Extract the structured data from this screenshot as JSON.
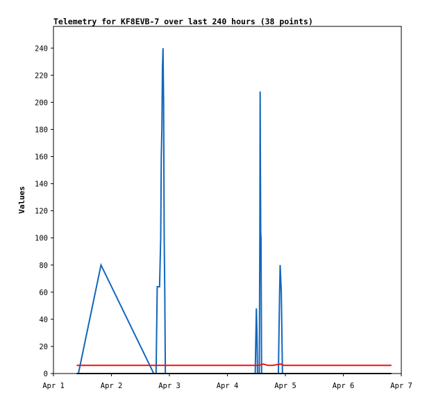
{
  "chart_data": {
    "type": "line",
    "title": "Telemetry for KF8EVB-7 over last 240 hours (38 points)",
    "xlabel": "",
    "ylabel": "Values",
    "x_tick_labels": [
      "Apr 1",
      "Apr 2",
      "Apr 3",
      "Apr 4",
      "Apr 5",
      "Apr 6",
      "Apr 7"
    ],
    "xlim": [
      1.0,
      7.0
    ],
    "y_ticks": [
      0,
      20,
      40,
      60,
      80,
      100,
      120,
      140,
      160,
      180,
      200,
      220,
      240
    ],
    "ylim": [
      0,
      256
    ],
    "grid": false,
    "series": [
      {
        "color": "#1166bb",
        "points": [
          [
            1.43,
            0
          ],
          [
            1.82,
            80
          ],
          [
            2.73,
            0
          ],
          [
            2.75,
            0
          ],
          [
            2.77,
            0
          ],
          [
            2.79,
            64
          ],
          [
            2.83,
            64
          ],
          [
            2.85,
            100
          ],
          [
            2.86,
            160
          ],
          [
            2.87,
            180
          ],
          [
            2.88,
            225
          ],
          [
            2.89,
            240
          ],
          [
            2.9,
            200
          ],
          [
            2.91,
            100
          ],
          [
            2.92,
            60
          ],
          [
            2.93,
            0
          ],
          [
            4.48,
            0
          ],
          [
            4.5,
            48
          ],
          [
            4.51,
            30
          ],
          [
            4.52,
            0
          ],
          [
            4.55,
            0
          ],
          [
            4.56,
            100
          ],
          [
            4.565,
            208
          ],
          [
            4.57,
            150
          ],
          [
            4.575,
            104
          ],
          [
            4.58,
            100
          ],
          [
            4.59,
            0
          ],
          [
            4.88,
            0
          ],
          [
            4.89,
            30
          ],
          [
            4.9,
            58
          ],
          [
            4.91,
            80
          ],
          [
            4.92,
            70
          ],
          [
            4.93,
            60
          ],
          [
            4.94,
            30
          ],
          [
            4.95,
            0
          ],
          [
            4.97,
            0
          ]
        ]
      },
      {
        "color": "#ee1111",
        "points": [
          [
            1.4,
            6
          ],
          [
            4.52,
            6
          ],
          [
            4.58,
            6.5
          ],
          [
            4.62,
            7
          ],
          [
            4.66,
            6.5
          ],
          [
            4.7,
            6
          ],
          [
            4.78,
            6
          ],
          [
            4.85,
            6.5
          ],
          [
            4.92,
            7
          ],
          [
            4.97,
            6
          ],
          [
            6.83,
            6
          ]
        ]
      },
      {
        "color": "#111111",
        "points": [
          [
            1.4,
            0
          ],
          [
            6.83,
            0
          ]
        ]
      }
    ]
  }
}
